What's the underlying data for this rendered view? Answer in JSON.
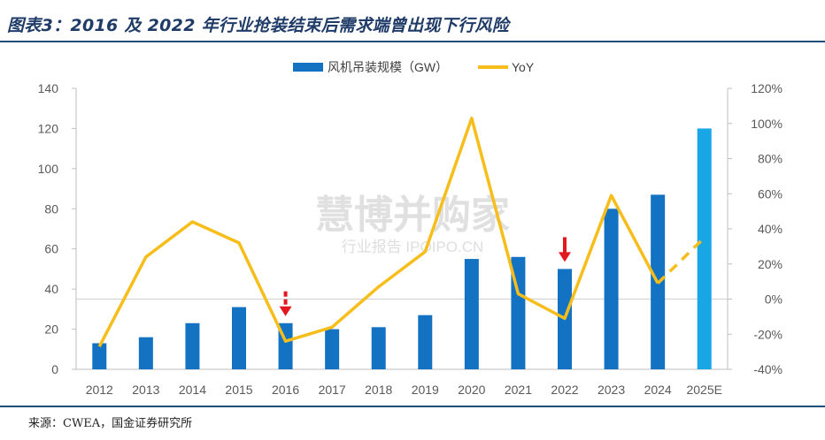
{
  "title": "图表3：2016 及 2022 年行业抢装结束后需求端曾出现下行风险",
  "source": "来源：CWEA，国金证券研究所",
  "watermark": {
    "main": "慧博并购家",
    "sub": "行业报告 IPOIPO.CN"
  },
  "colors": {
    "bar": "#1372c2",
    "bar_forecast": "#18a6e6",
    "line": "#f7bd1b",
    "arrow": "#e3181f",
    "rule": "#1f4e79"
  },
  "chart_data": {
    "type": "bar",
    "categories": [
      "2012",
      "2013",
      "2014",
      "2015",
      "2016",
      "2017",
      "2018",
      "2019",
      "2020",
      "2021",
      "2022",
      "2023",
      "2024",
      "2025E"
    ],
    "series": [
      {
        "name": "风机吊装规模（GW）",
        "type": "bar",
        "axis": "left",
        "values": [
          13,
          16,
          23,
          31,
          23,
          20,
          21,
          27,
          55,
          56,
          50,
          80,
          87,
          120
        ]
      },
      {
        "name": "YoY",
        "type": "line",
        "axis": "right",
        "values": [
          -27,
          24,
          44,
          32,
          -24,
          -16,
          7,
          27,
          103,
          3,
          -11,
          59,
          9,
          35
        ],
        "dashed_from_index": 12
      }
    ],
    "left_axis": {
      "ylim": [
        0,
        140
      ],
      "ticks": [
        0,
        20,
        40,
        60,
        80,
        100,
        120,
        140
      ]
    },
    "right_axis": {
      "ylim": [
        -40,
        120
      ],
      "ticks": [
        "-40%",
        "-20%",
        "0%",
        "20%",
        "40%",
        "60%",
        "80%",
        "100%",
        "120%"
      ]
    },
    "forecast_index": 13,
    "annotations": [
      {
        "type": "down-arrow",
        "category": "2016"
      },
      {
        "type": "down-arrow",
        "category": "2022"
      }
    ],
    "legend": "top-center",
    "grid": false
  }
}
